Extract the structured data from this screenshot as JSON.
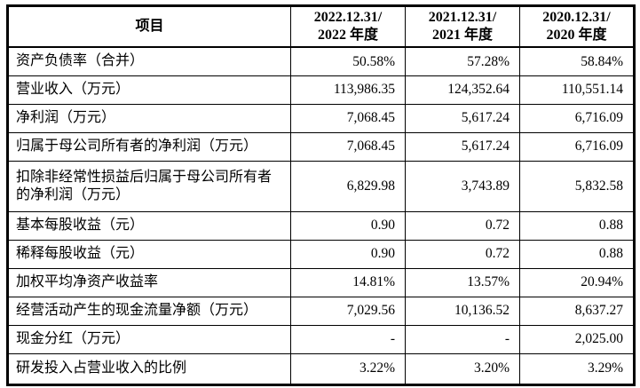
{
  "table": {
    "header": {
      "item_label": "项目",
      "columns": [
        {
          "line1": "2022.12.31/",
          "line2": "2022 年度"
        },
        {
          "line1": "2021.12.31/",
          "line2": "2021 年度"
        },
        {
          "line1": "2020.12.31/",
          "line2": "2020 年度"
        }
      ]
    },
    "rows": [
      {
        "label": "资产负债率（合并）",
        "values": [
          "50.58%",
          "57.28%",
          "58.84%"
        ]
      },
      {
        "label": "营业收入（万元）",
        "values": [
          "113,986.35",
          "124,352.64",
          "110,551.14"
        ]
      },
      {
        "label": "净利润（万元）",
        "values": [
          "7,068.45",
          "5,617.24",
          "6,716.09"
        ]
      },
      {
        "label": "归属于母公司所有者的净利润（万元）",
        "values": [
          "7,068.45",
          "5,617.24",
          "6,716.09"
        ]
      },
      {
        "label": "扣除非经常性损益后归属于母公司所有者的净利润（万元）",
        "values": [
          "6,829.98",
          "3,743.89",
          "5,832.58"
        ]
      },
      {
        "label": "基本每股收益（元）",
        "values": [
          "0.90",
          "0.72",
          "0.88"
        ]
      },
      {
        "label": "稀释每股收益（元）",
        "values": [
          "0.90",
          "0.72",
          "0.88"
        ]
      },
      {
        "label": "加权平均净资产收益率",
        "values": [
          "14.81%",
          "13.57%",
          "20.94%"
        ]
      },
      {
        "label": "经营活动产生的现金流量净额（万元）",
        "values": [
          "7,029.56",
          "10,136.52",
          "8,637.27"
        ]
      },
      {
        "label": "现金分红（万元）",
        "values": [
          "-",
          "-",
          "2,025.00"
        ]
      },
      {
        "label": "研发投入占营业收入的比例",
        "values": [
          "3.22%",
          "3.20%",
          "3.29%"
        ]
      }
    ],
    "text_color": "#000000",
    "border_color": "#000000",
    "background_color": "#ffffff"
  }
}
